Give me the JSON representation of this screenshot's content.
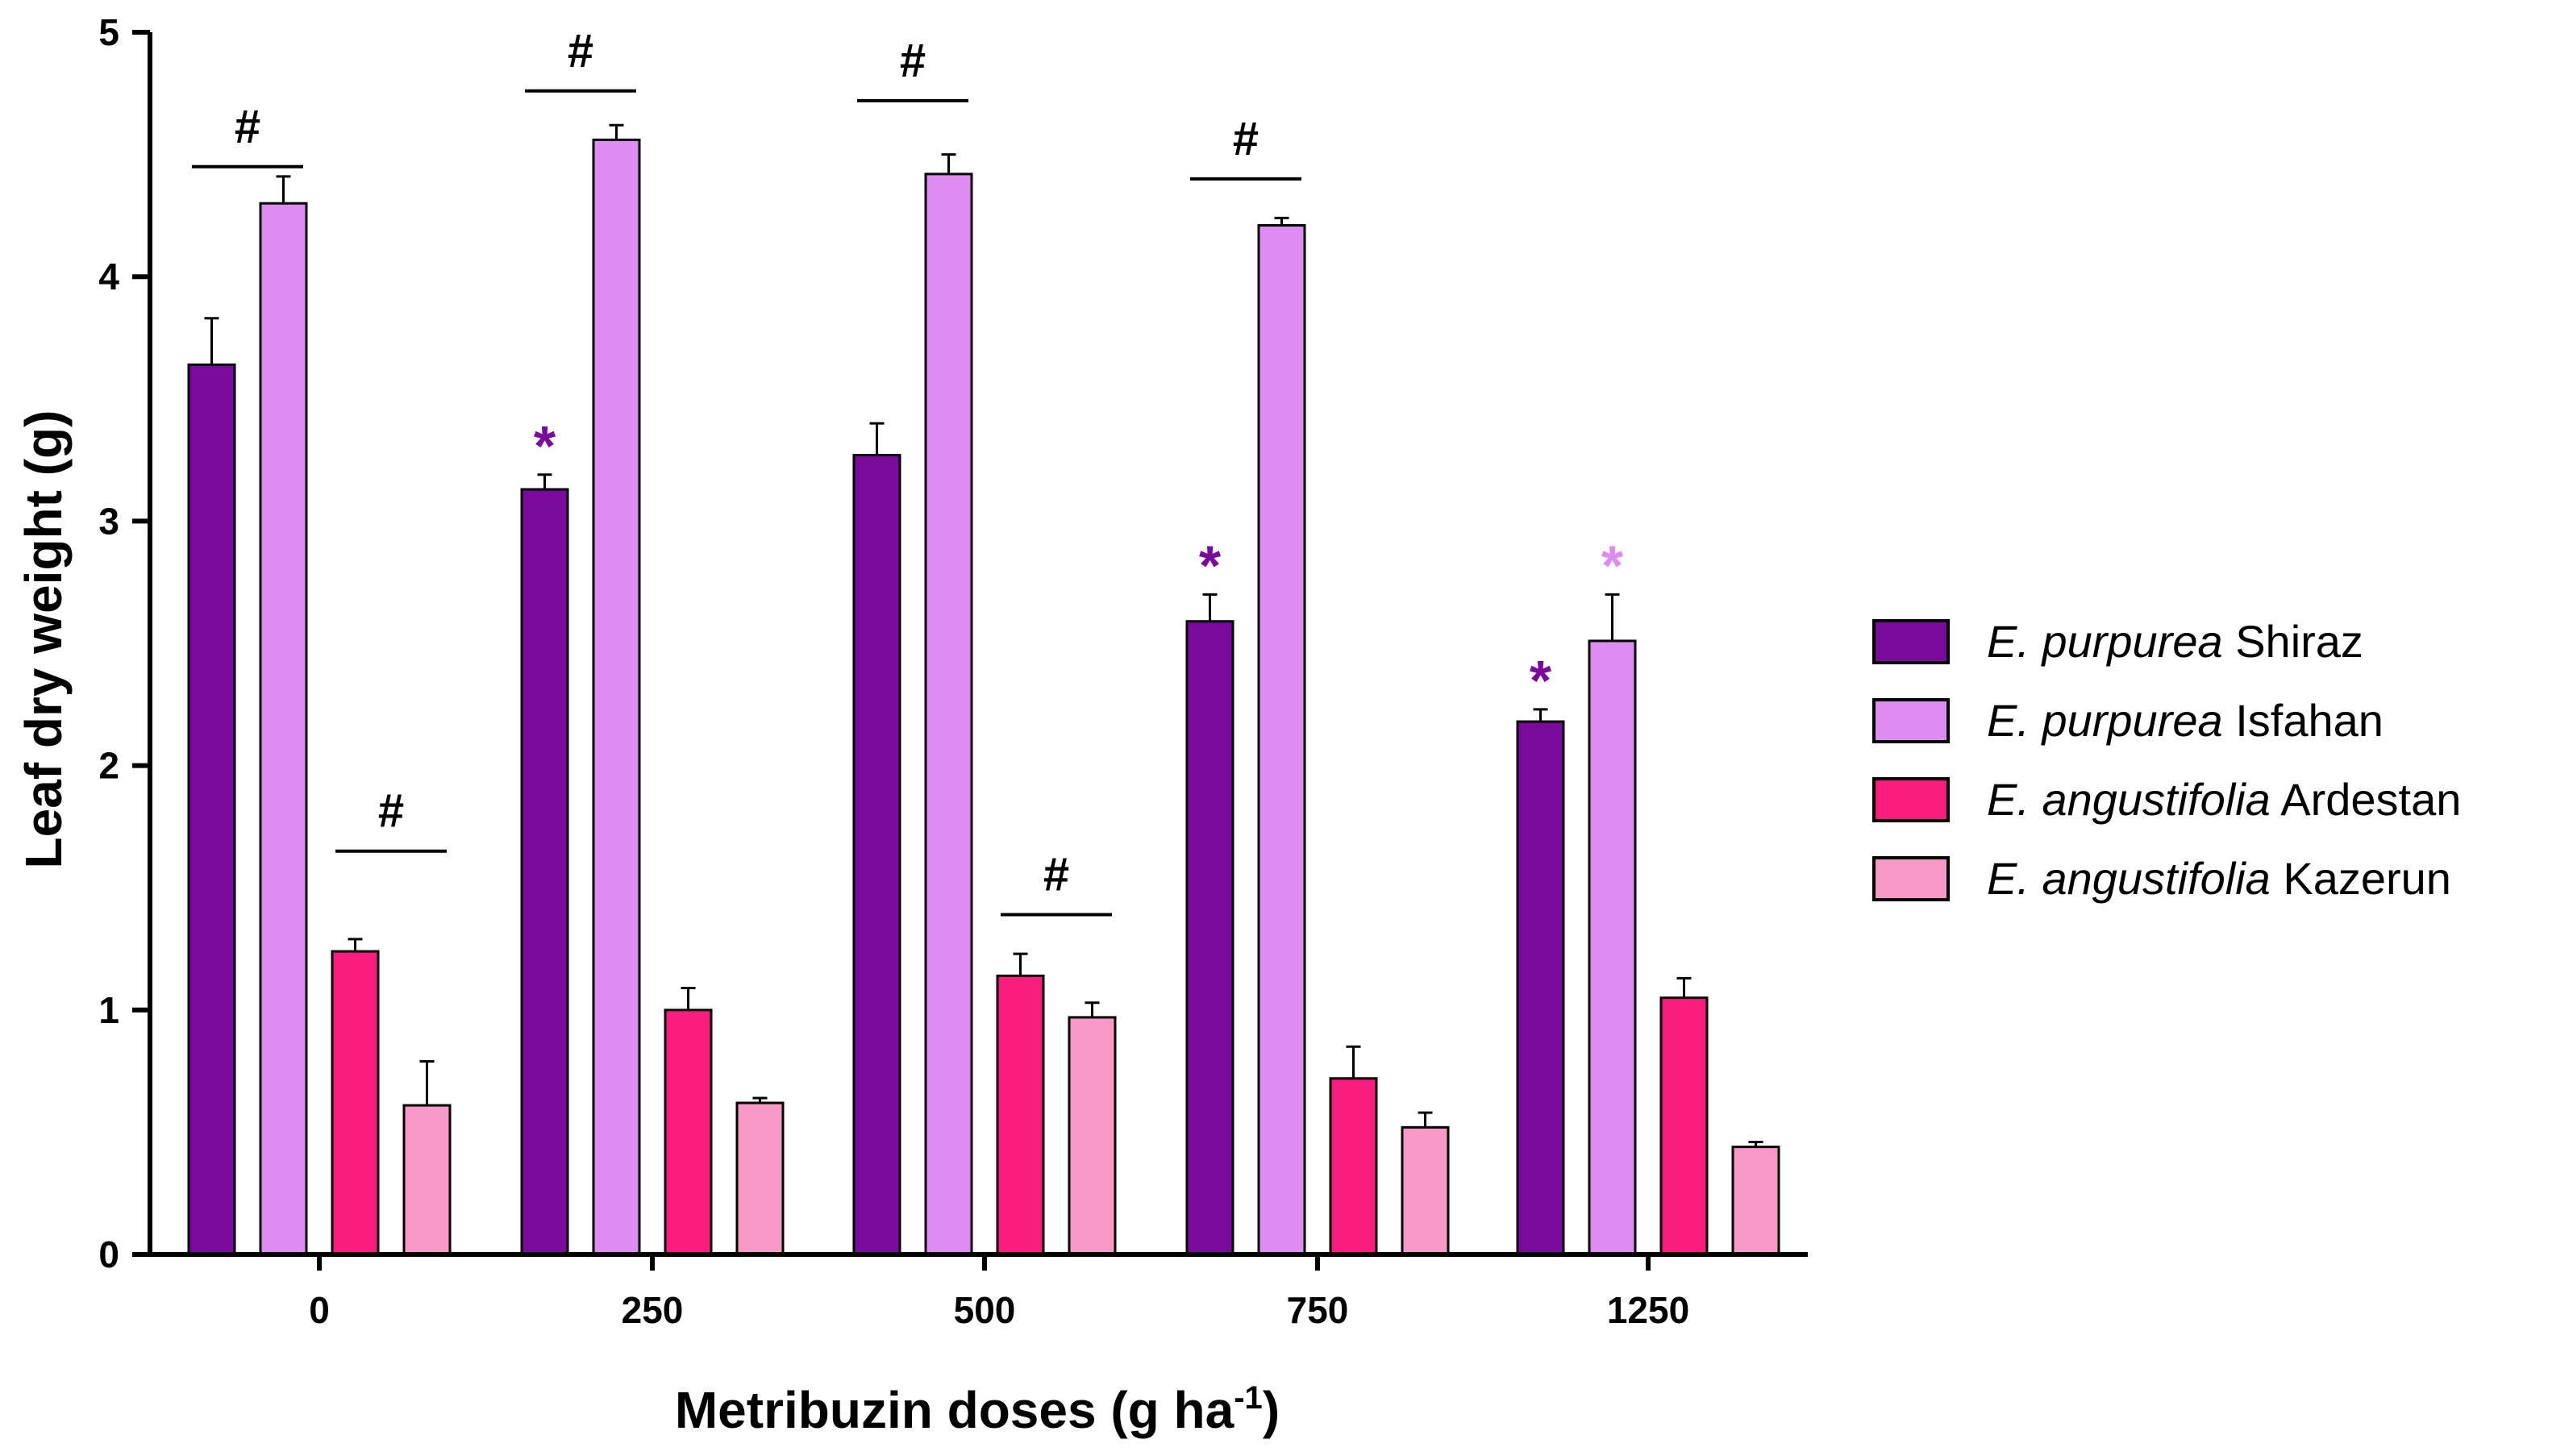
{
  "chart_data": {
    "type": "bar",
    "xlabel": "Metribuzin doses (g ha",
    "xlabel_superscript": "-1",
    "xlabel_close": ")",
    "ylabel": "Leaf dry weight (g)",
    "ylim": [
      0,
      5
    ],
    "yticks": [
      "0",
      "1",
      "2",
      "3",
      "4",
      "5"
    ],
    "categories": [
      "0",
      "250",
      "500",
      "750",
      "1250"
    ],
    "series": [
      {
        "name_species": "E. purpurea",
        "name_site": "Shiraz",
        "color": "#7a0a9c",
        "values": [
          3.64,
          3.13,
          3.27,
          2.59,
          2.18
        ],
        "errors": [
          0.19,
          0.06,
          0.13,
          0.11,
          0.05
        ]
      },
      {
        "name_species": "E. purpurea",
        "name_site": "Isfahan",
        "color": "#de8cf2",
        "values": [
          4.3,
          4.56,
          4.42,
          4.21,
          2.51
        ],
        "errors": [
          0.11,
          0.06,
          0.08,
          0.03,
          0.19
        ]
      },
      {
        "name_species": "E. angustifolia",
        "name_site": "Ardestan",
        "color": "#f81d7f",
        "values": [
          1.24,
          1.0,
          1.14,
          0.72,
          1.05
        ],
        "errors": [
          0.05,
          0.09,
          0.09,
          0.13,
          0.08
        ]
      },
      {
        "name_species": "E. angustifolia",
        "name_site": "Kazerun",
        "color": "#f898c4",
        "values": [
          0.61,
          0.62,
          0.97,
          0.52,
          0.44
        ],
        "errors": [
          0.18,
          0.02,
          0.06,
          0.06,
          0.02
        ]
      }
    ],
    "annotations": {
      "hash_symbol": "#",
      "star_symbol": "*",
      "hashes": [
        {
          "category": 0,
          "from_series": 0,
          "to_series": 1,
          "y": 4.45
        },
        {
          "category": 0,
          "from_series": 2,
          "to_series": 3,
          "y": 1.65
        },
        {
          "category": 1,
          "from_series": 0,
          "to_series": 1,
          "y": 4.76
        },
        {
          "category": 2,
          "from_series": 0,
          "to_series": 1,
          "y": 4.72
        },
        {
          "category": 2,
          "from_series": 2,
          "to_series": 3,
          "y": 1.39
        },
        {
          "category": 3,
          "from_series": 0,
          "to_series": 1,
          "y": 4.4
        }
      ],
      "stars": [
        {
          "category": 1,
          "series": 0
        },
        {
          "category": 3,
          "series": 0
        },
        {
          "category": 4,
          "series": 0
        },
        {
          "category": 4,
          "series": 1
        }
      ]
    },
    "legend_position": "right"
  }
}
